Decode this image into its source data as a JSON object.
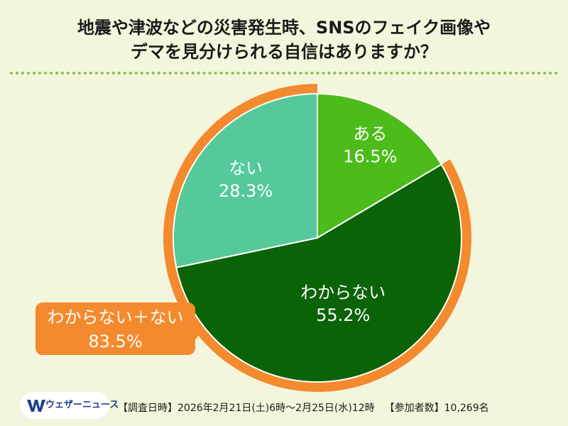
{
  "title": {
    "line1": "地震や津波などの災害発生時、SNSのフェイク画像や",
    "line2": "デマを見分けられる自信はありますか？"
  },
  "chart_data": {
    "type": "pie",
    "title": "地震や津波などの災害発生時、SNSのフェイク画像やデマを見分けられる自信はありますか？",
    "slices": [
      {
        "label": "ある",
        "value": 16.5,
        "display": "16.5%",
        "color": "#4cbc1a"
      },
      {
        "label": "わからない",
        "value": 55.2,
        "display": "55.2%",
        "color": "#0b6308"
      },
      {
        "label": "ない",
        "value": 28.3,
        "display": "28.3%",
        "color": "#55c99a"
      }
    ],
    "highlight": {
      "label": "わからない＋ない",
      "value": 83.5,
      "display": "83.5%",
      "color": "#f48a2e"
    }
  },
  "footer": {
    "survey_period": "【調査日時】2026年2月21日(土)6時〜2月25日(水)12時",
    "participants": "【参加者数】10,269名"
  },
  "logo": {
    "text": "ウェザーニュース",
    "colors": {
      "mark": "#1f3f8f",
      "text": "#1f3f8f"
    }
  },
  "colors": {
    "background": "#f3f5dc",
    "divider": "#8cbf4a",
    "accent_orange": "#f48a2e"
  }
}
